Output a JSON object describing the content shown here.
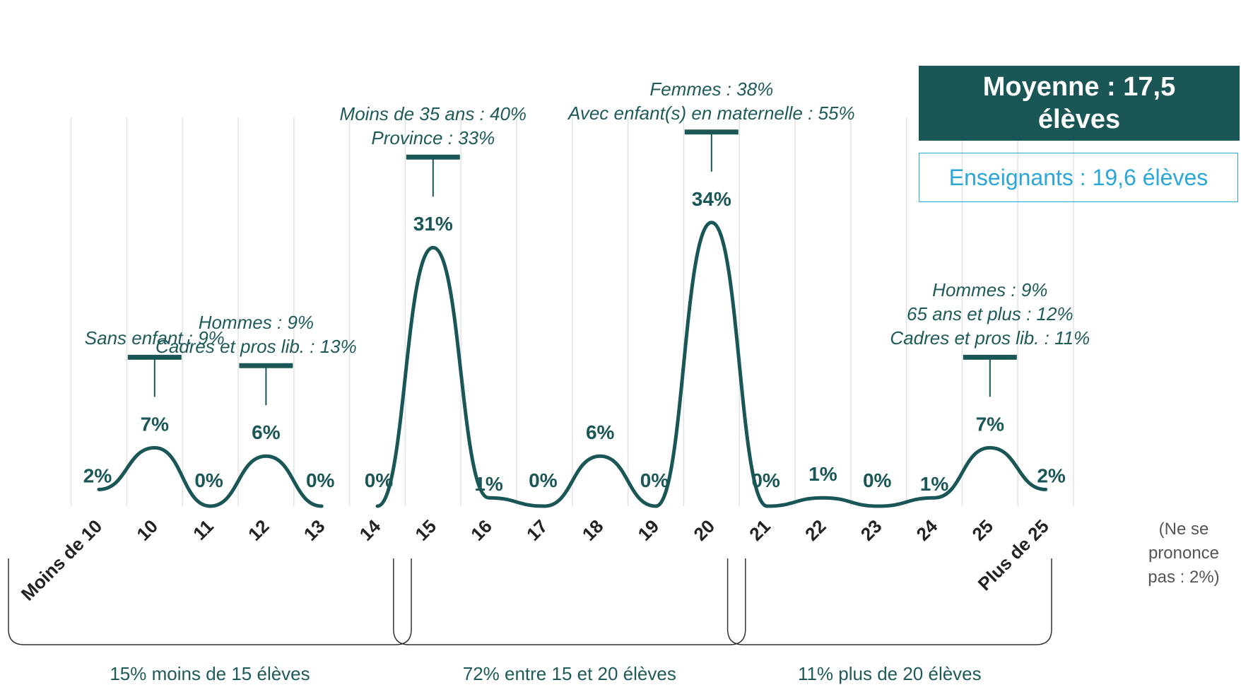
{
  "chart_data": {
    "type": "line",
    "categories": [
      "Moins de 10",
      "10",
      "11",
      "12",
      "13",
      "14",
      "15",
      "16",
      "17",
      "18",
      "19",
      "20",
      "21",
      "22",
      "23",
      "24",
      "25",
      "Plus de 25"
    ],
    "values": [
      2,
      7,
      0,
      6,
      0,
      0,
      31,
      1,
      0,
      6,
      0,
      34,
      0,
      1,
      0,
      1,
      7,
      2
    ],
    "value_labels": [
      "2%",
      "7%",
      "0%",
      "6%",
      "0%",
      "0%",
      "31%",
      "1%",
      "0%",
      "6%",
      "0%",
      "34%",
      "0%",
      "1%",
      "0%",
      "1%",
      "7%",
      "2%"
    ],
    "ylim": [
      0,
      40
    ],
    "grid": "vertical",
    "line_color": "#1a5656"
  },
  "summary": {
    "mean_label": "Moyenne : 17,5 élèves",
    "teachers_label": "Enseignants : 19,6 élèves",
    "no_answer": "(Ne se prononce pas : 2%)"
  },
  "annotations": [
    {
      "category": "10",
      "lines": [
        "Sans enfant : 9%"
      ]
    },
    {
      "category": "12",
      "lines": [
        "Hommes : 9%",
        "Cadres et pros lib. : 13%"
      ]
    },
    {
      "category": "15",
      "lines": [
        "Moins de 35 ans : 40%",
        "Province : 33%"
      ]
    },
    {
      "category": "20",
      "lines": [
        "Femmes : 38%",
        "Avec enfant(s) en maternelle : 55%"
      ]
    },
    {
      "category": "25",
      "lines": [
        "Hommes : 9%",
        "65 ans et plus : 12%",
        "Cadres et pros lib. : 11%"
      ]
    }
  ],
  "groups": [
    {
      "label": "15% moins de 15 élèves"
    },
    {
      "label": "72% entre 15 et 20 élèves"
    },
    {
      "label": "11% plus de 20 élèves"
    }
  ]
}
